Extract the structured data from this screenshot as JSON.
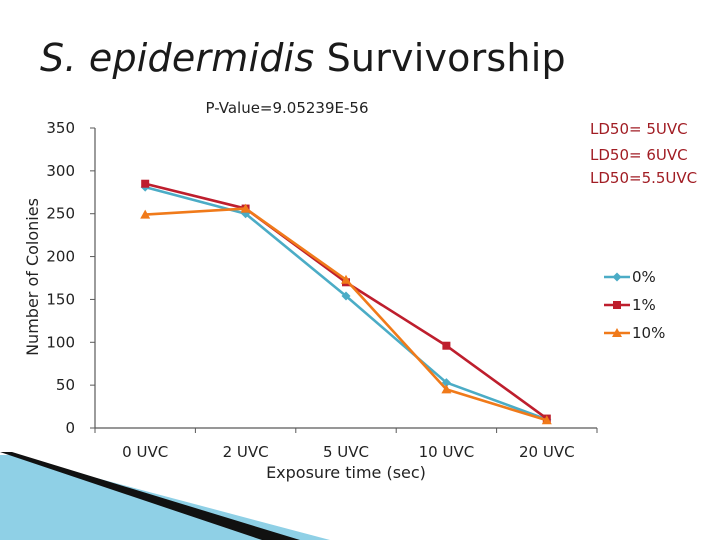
{
  "slide": {
    "title_italic": "S. epidermidis",
    "title_rest": " Survivorship"
  },
  "chart_data": {
    "type": "line",
    "title": "P-Value=9.05239E-56",
    "xlabel": "Exposure time (sec)",
    "ylabel": "Number of Colonies",
    "categories": [
      "0 UVC",
      "2 UVC",
      "5 UVC",
      "10 UVC",
      "20 UVC"
    ],
    "ylim": [
      0,
      350
    ],
    "yticks": [
      0,
      50,
      100,
      150,
      200,
      250,
      300,
      350
    ],
    "legend_position": "right",
    "series": [
      {
        "name": "0%",
        "color": "#4bacc6",
        "marker": "diamond",
        "values": [
          281,
          250,
          154,
          53,
          10
        ],
        "ld50": "LD50= 5UVC"
      },
      {
        "name": "1%",
        "color": "#be1e2d",
        "marker": "square",
        "values": [
          285,
          256,
          170,
          96,
          11
        ],
        "ld50": "LD50= 6UVC"
      },
      {
        "name": "10%",
        "color": "#f07a1a",
        "marker": "triangle",
        "values": [
          249,
          256,
          173,
          45,
          9
        ],
        "ld50": "LD50=5.5UVC"
      }
    ]
  },
  "colors": {
    "axis": "#595959",
    "ld50_text": "#a11d24",
    "deco_dark": "#111111",
    "deco_light": "#8fd0e6"
  }
}
